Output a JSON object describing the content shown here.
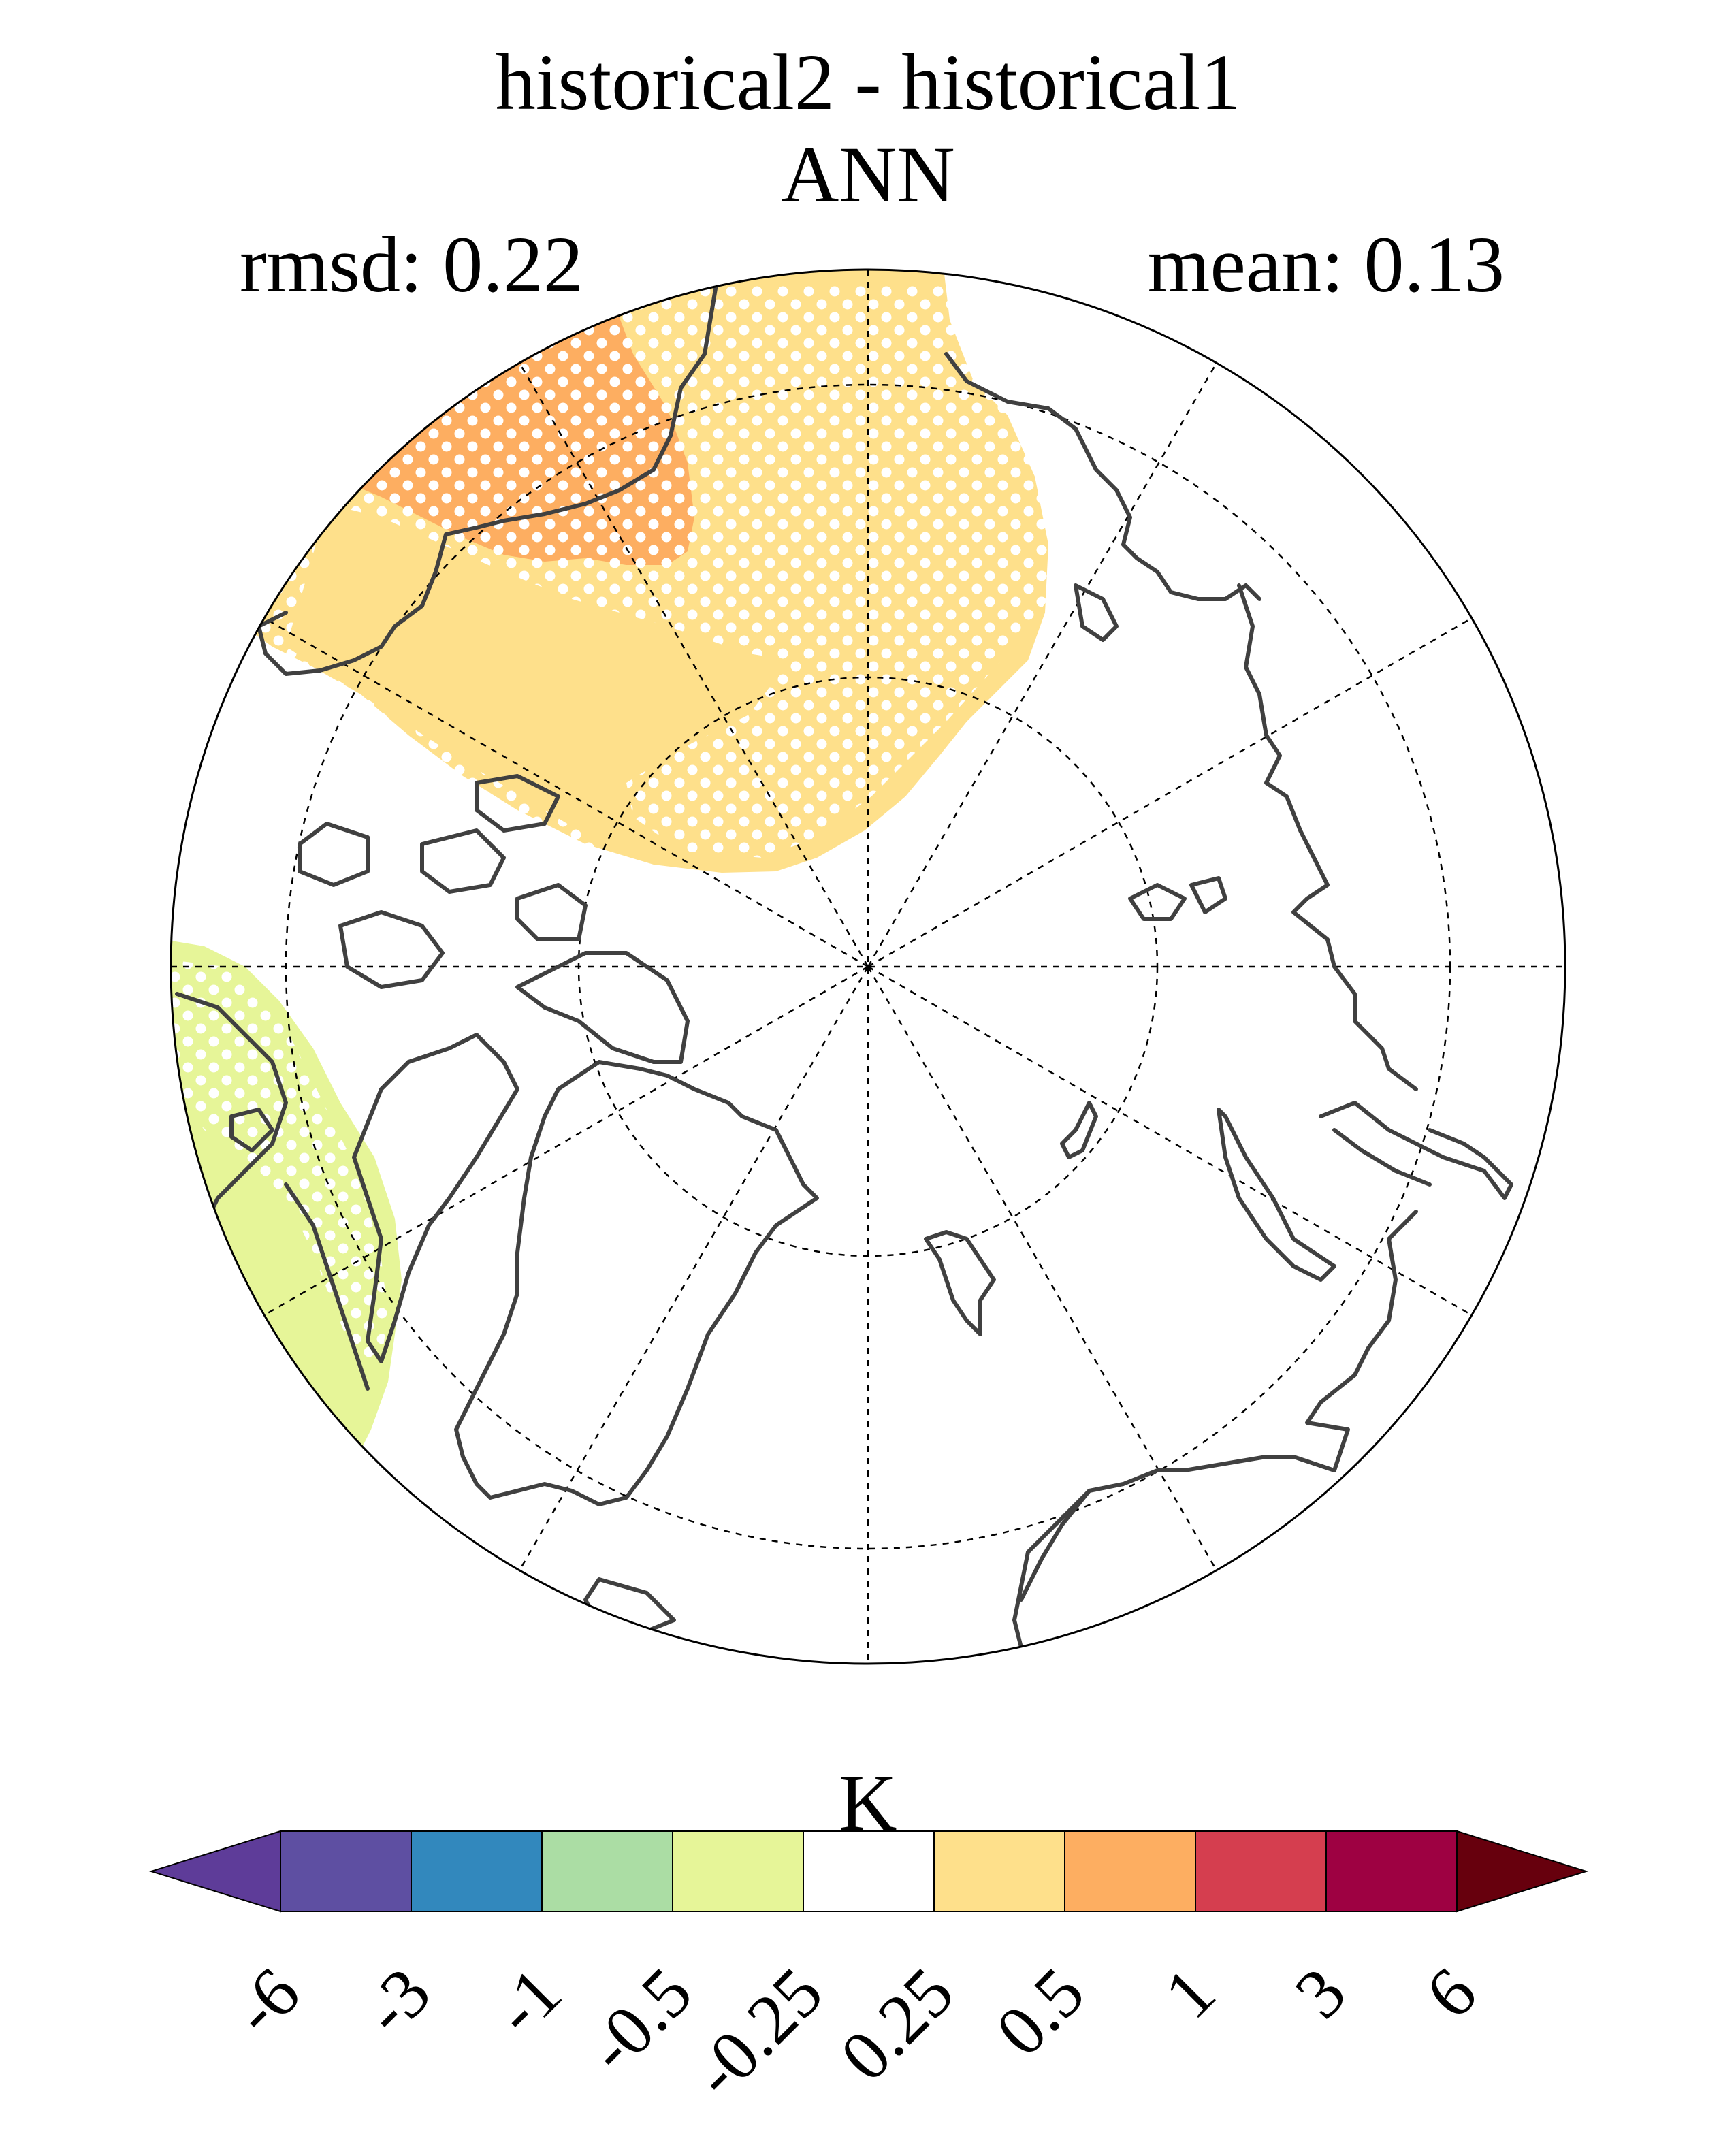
{
  "figure": {
    "title": "historical2 - historical1",
    "season": "ANN",
    "rmsd_label": "rmsd: 0.22",
    "mean_label": "mean: 0.13"
  },
  "colorbar": {
    "units": "K",
    "levels": [
      "-6",
      "-3",
      "-1",
      "-0.5",
      "-0.25",
      "0.25",
      "0.5",
      "1",
      "3",
      "6"
    ],
    "colors": [
      "#5e3c99",
      "#5e4fa2",
      "#3288bd",
      "#abdda4",
      "#e6f598",
      "#ffffff",
      "#fee08b",
      "#fdae61",
      "#d53e4f",
      "#9e0142",
      "#67000d"
    ]
  },
  "map": {
    "projection": "north-polar-stereographic",
    "field_colors": {
      "warm_light": "#fee08b",
      "warm_medium": "#fdae61",
      "cool_light": "#e6f598"
    },
    "coastline_color": "#404040",
    "stippling": "significance"
  }
}
